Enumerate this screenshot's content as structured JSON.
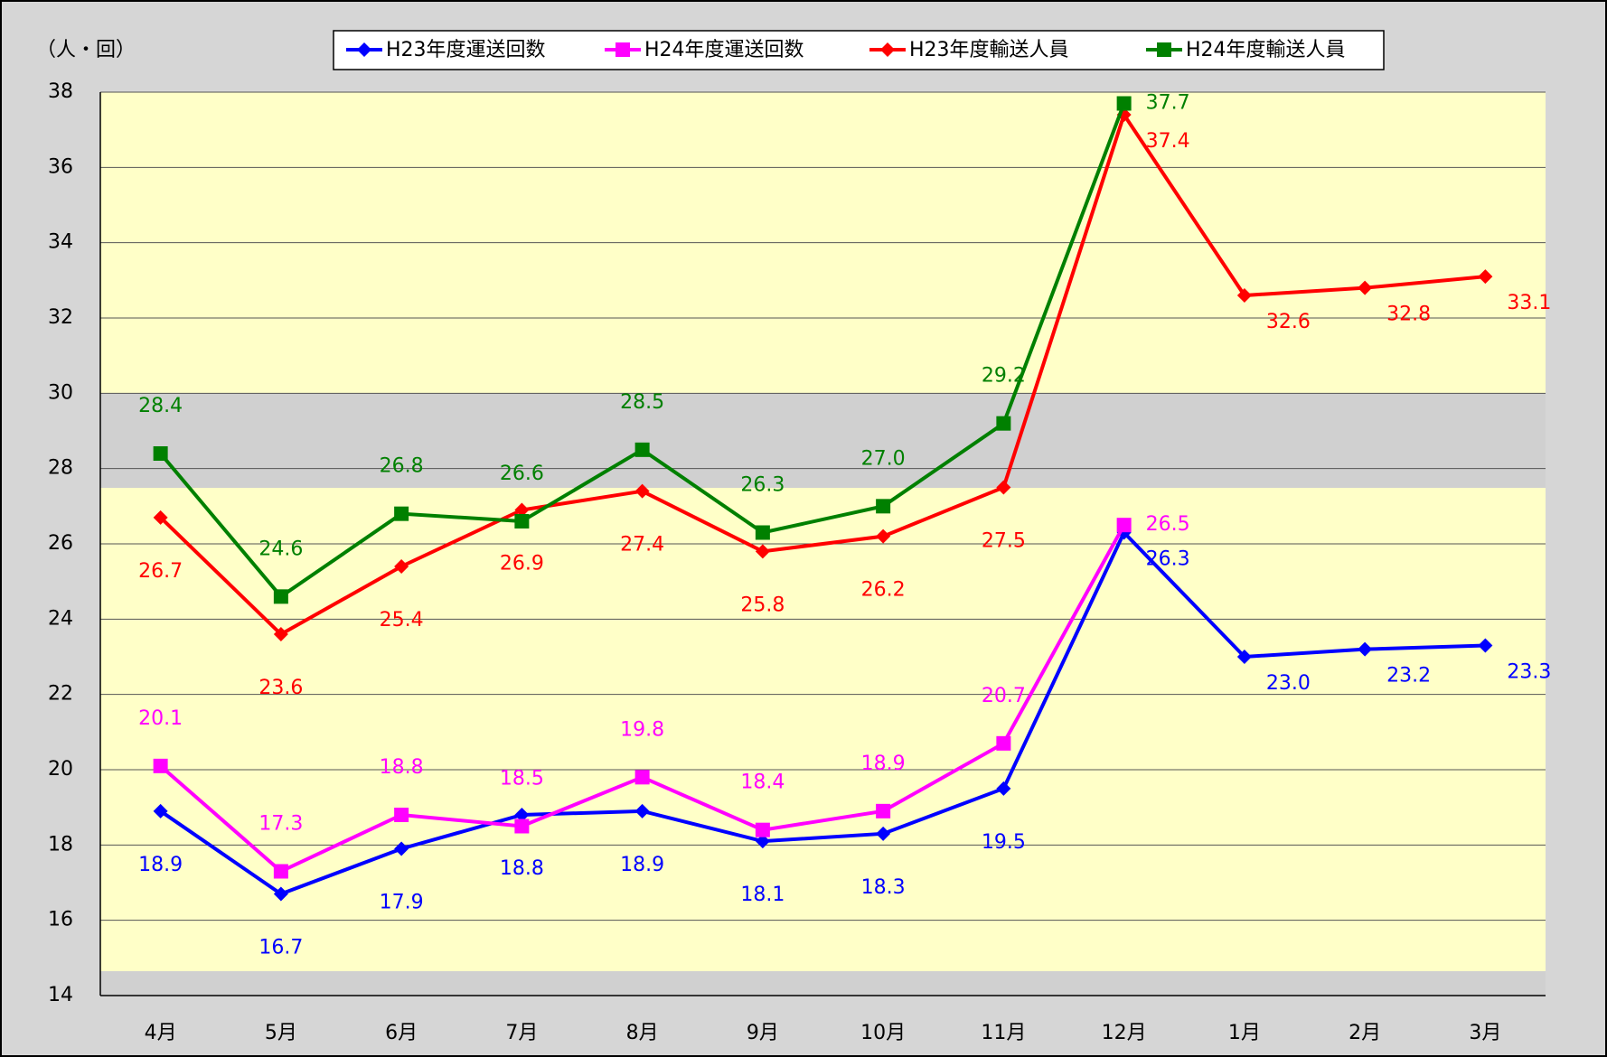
{
  "chart_data": {
    "type": "line",
    "y_label": "（人・回）",
    "categories": [
      "4月",
      "5月",
      "6月",
      "7月",
      "8月",
      "9月",
      "10月",
      "11月",
      "12月",
      "1月",
      "2月",
      "3月"
    ],
    "series": [
      {
        "name": "H23年度運送回数",
        "color": "#0000ff",
        "marker": "diamond",
        "values": [
          18.9,
          16.7,
          17.9,
          18.8,
          18.9,
          18.1,
          18.3,
          19.5,
          26.3,
          23.0,
          23.2,
          23.3
        ],
        "value_labels": [
          "18.9",
          "16.7",
          "17.9",
          "18.8",
          "18.9",
          "18.1",
          "18.3",
          "19.5",
          "26.3",
          "23.0",
          "23.2",
          "23.3"
        ]
      },
      {
        "name": "H24年度運送回数",
        "color": "#ff00ff",
        "marker": "square",
        "values": [
          20.1,
          17.3,
          18.8,
          18.5,
          19.8,
          18.4,
          18.9,
          20.7,
          26.5,
          null,
          null,
          null
        ],
        "value_labels": [
          "20.1",
          "17.3",
          "18.8",
          "18.5",
          "19.8",
          "18.4",
          "18.9",
          "20.7",
          "26.5",
          null,
          null,
          null
        ]
      },
      {
        "name": "H23年度輸送人員",
        "color": "#ff0000",
        "marker": "diamond",
        "values": [
          26.7,
          23.6,
          25.4,
          26.9,
          27.4,
          25.8,
          26.2,
          27.5,
          37.4,
          32.6,
          32.8,
          33.1
        ],
        "value_labels": [
          "26.7",
          "23.6",
          "25.4",
          "26.9",
          "27.4",
          "25.8",
          "26.2",
          "27.5",
          "37.4",
          "32.6",
          "32.8",
          "33.1"
        ]
      },
      {
        "name": "H24年度輸送人員",
        "color": "#008000",
        "marker": "square",
        "values": [
          28.4,
          24.6,
          26.8,
          26.6,
          28.5,
          26.3,
          27.0,
          29.2,
          37.7,
          null,
          null,
          null
        ],
        "value_labels": [
          "28.4",
          "24.6",
          "26.8",
          "26.6",
          "28.5",
          "26.3",
          "27.0",
          "29.2",
          "37.7",
          null,
          null,
          null
        ]
      }
    ],
    "ylim": [
      14,
      38
    ],
    "yticks": [
      14,
      16,
      18,
      20,
      22,
      24,
      26,
      28,
      30,
      32,
      34,
      36,
      38
    ],
    "grid": true,
    "legend": "top"
  }
}
